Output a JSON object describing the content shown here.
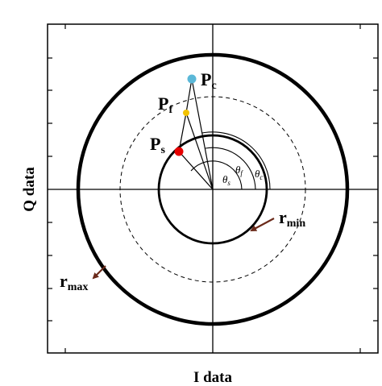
{
  "axes": {
    "x_label": "I data",
    "y_label": "Q data"
  },
  "points": {
    "pc": {
      "main": "P",
      "sub": "c",
      "color": "#5bb8d8"
    },
    "pf": {
      "main": "P",
      "sub": "f",
      "color": "#f2c200"
    },
    "ps": {
      "main": "P",
      "sub": "s",
      "color": "#e60000"
    }
  },
  "angles": {
    "theta_s": {
      "main": "θ",
      "sub": "s"
    },
    "theta_f": {
      "main": "θ",
      "sub": "f"
    },
    "theta_c": {
      "main": "θ",
      "sub": "c"
    }
  },
  "radii": {
    "rmin": {
      "main": "r",
      "sub": "min"
    },
    "rmax": {
      "main": "r",
      "sub": "max"
    }
  },
  "colors": {
    "arrow": "#6b2a1a",
    "lines": "#000000"
  }
}
